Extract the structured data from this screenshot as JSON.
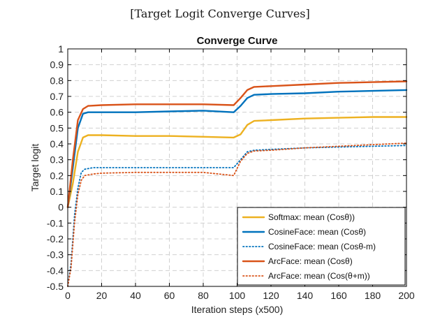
{
  "page_title": "[Target Logit Converge Curves]",
  "chart_data": {
    "type": "line",
    "title": "Converge Curve",
    "xlabel": "Iteration steps (x500)",
    "ylabel": "Target logit",
    "xlim": [
      0,
      200
    ],
    "ylim": [
      -0.5,
      1
    ],
    "xticks": [
      0,
      20,
      40,
      60,
      80,
      100,
      120,
      140,
      160,
      180,
      200
    ],
    "yticks": [
      -0.5,
      -0.4,
      -0.3,
      -0.2,
      -0.1,
      0,
      0.1,
      0.2,
      0.3,
      0.4,
      0.5,
      0.6,
      0.7,
      0.8,
      0.9,
      1
    ],
    "grid": true,
    "legend_position": "bottom-right",
    "series": [
      {
        "name": "Softmax: mean (Cosθ))",
        "color": "#EDB120",
        "style": "solid",
        "points": [
          [
            0,
            0
          ],
          [
            3,
            0.15
          ],
          [
            6,
            0.35
          ],
          [
            9,
            0.44
          ],
          [
            12,
            0.455
          ],
          [
            20,
            0.455
          ],
          [
            40,
            0.45
          ],
          [
            60,
            0.45
          ],
          [
            80,
            0.445
          ],
          [
            98,
            0.44
          ],
          [
            102,
            0.46
          ],
          [
            106,
            0.52
          ],
          [
            110,
            0.545
          ],
          [
            120,
            0.55
          ],
          [
            140,
            0.56
          ],
          [
            160,
            0.565
          ],
          [
            180,
            0.57
          ],
          [
            200,
            0.57
          ]
        ]
      },
      {
        "name": "CosineFace: mean (Cosθ)",
        "color": "#0072BD",
        "style": "solid",
        "points": [
          [
            0,
            0
          ],
          [
            3,
            0.25
          ],
          [
            6,
            0.5
          ],
          [
            9,
            0.59
          ],
          [
            12,
            0.6
          ],
          [
            20,
            0.6
          ],
          [
            40,
            0.6
          ],
          [
            60,
            0.605
          ],
          [
            80,
            0.61
          ],
          [
            98,
            0.6
          ],
          [
            102,
            0.64
          ],
          [
            106,
            0.69
          ],
          [
            110,
            0.71
          ],
          [
            120,
            0.715
          ],
          [
            140,
            0.72
          ],
          [
            160,
            0.73
          ],
          [
            180,
            0.735
          ],
          [
            200,
            0.74
          ]
        ]
      },
      {
        "name": "CosineFace: mean (Cosθ-m)",
        "color": "#0072BD",
        "style": "dotted",
        "points": [
          [
            0,
            -0.5
          ],
          [
            2,
            -0.35
          ],
          [
            4,
            -0.05
          ],
          [
            6,
            0.12
          ],
          [
            8,
            0.22
          ],
          [
            10,
            0.24
          ],
          [
            15,
            0.25
          ],
          [
            20,
            0.25
          ],
          [
            40,
            0.25
          ],
          [
            60,
            0.25
          ],
          [
            80,
            0.25
          ],
          [
            98,
            0.25
          ],
          [
            102,
            0.3
          ],
          [
            106,
            0.35
          ],
          [
            110,
            0.36
          ],
          [
            120,
            0.365
          ],
          [
            140,
            0.375
          ],
          [
            160,
            0.38
          ],
          [
            180,
            0.385
          ],
          [
            200,
            0.39
          ]
        ]
      },
      {
        "name": "ArcFace: mean (Cosθ)",
        "color": "#D95319",
        "style": "solid",
        "points": [
          [
            0,
            0
          ],
          [
            3,
            0.3
          ],
          [
            6,
            0.55
          ],
          [
            9,
            0.62
          ],
          [
            12,
            0.64
          ],
          [
            20,
            0.645
          ],
          [
            40,
            0.65
          ],
          [
            60,
            0.65
          ],
          [
            80,
            0.65
          ],
          [
            98,
            0.645
          ],
          [
            102,
            0.69
          ],
          [
            106,
            0.74
          ],
          [
            110,
            0.76
          ],
          [
            120,
            0.765
          ],
          [
            140,
            0.775
          ],
          [
            160,
            0.785
          ],
          [
            180,
            0.79
          ],
          [
            200,
            0.795
          ]
        ]
      },
      {
        "name": "ArcFace: mean (Cos(θ+m))",
        "color": "#D95319",
        "style": "dotted",
        "points": [
          [
            0,
            -0.5
          ],
          [
            2,
            -0.38
          ],
          [
            4,
            -0.1
          ],
          [
            6,
            0.08
          ],
          [
            8,
            0.17
          ],
          [
            10,
            0.2
          ],
          [
            15,
            0.21
          ],
          [
            20,
            0.215
          ],
          [
            40,
            0.22
          ],
          [
            60,
            0.22
          ],
          [
            80,
            0.22
          ],
          [
            98,
            0.2
          ],
          [
            102,
            0.29
          ],
          [
            106,
            0.34
          ],
          [
            110,
            0.355
          ],
          [
            120,
            0.36
          ],
          [
            140,
            0.375
          ],
          [
            160,
            0.385
          ],
          [
            180,
            0.395
          ],
          [
            200,
            0.405
          ]
        ]
      }
    ]
  }
}
